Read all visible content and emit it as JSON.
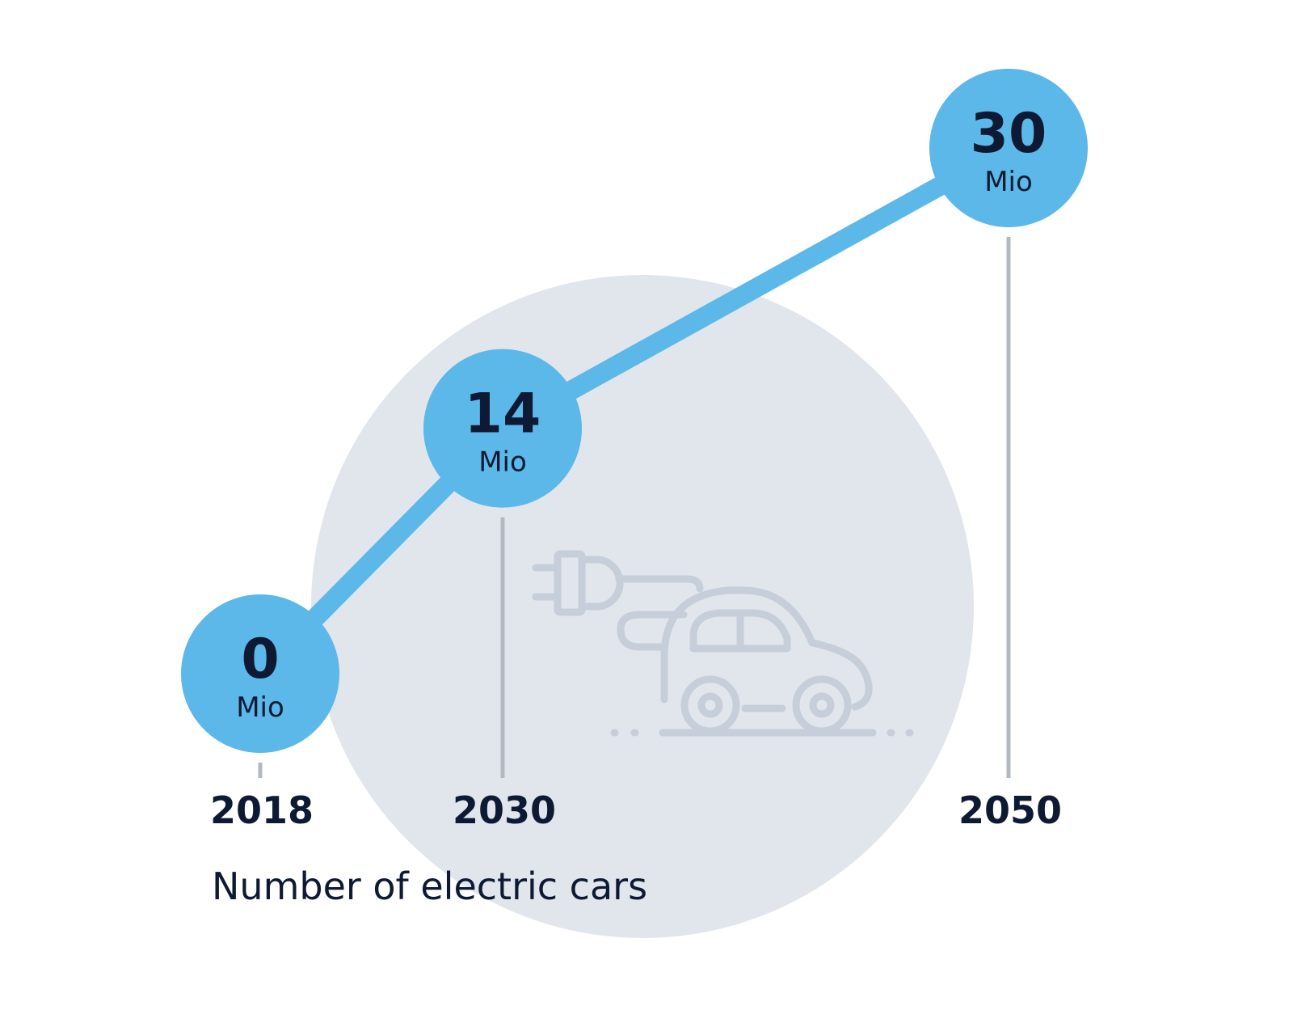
{
  "chart_data": {
    "type": "line",
    "title": "Number of electric cars",
    "x": [
      "2018",
      "2030",
      "2050"
    ],
    "values": [
      0,
      14,
      30
    ],
    "unit": "Mio",
    "value_labels": [
      "0",
      "14",
      "30"
    ],
    "ylim": [
      0,
      30
    ]
  },
  "colors": {
    "line": "#5bb8e8",
    "marker": "#5bb8e8",
    "bg_circle": "#e1e6ed",
    "icon": "#c6ced9",
    "guide": "#b3b9c0",
    "text": "#0e1a33"
  },
  "icon": "electric-car-icon"
}
